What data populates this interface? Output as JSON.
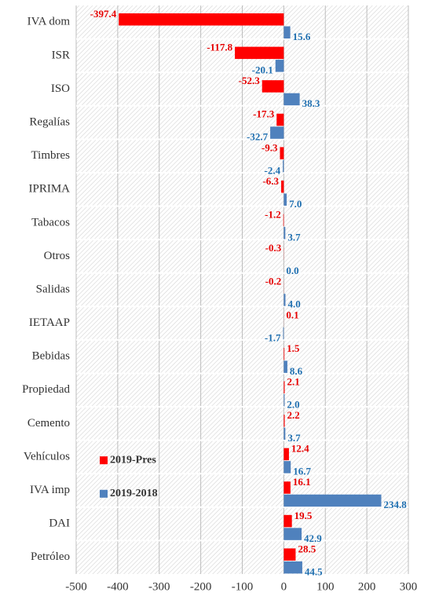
{
  "chart_data": {
    "type": "hbar",
    "categories": [
      "IVA dom",
      "ISR",
      "ISO",
      "Regalías",
      "Timbres",
      "IPRIMA",
      "Tabacos",
      "Otros",
      "Salidas",
      "IETAAP",
      "Bebidas",
      "Propiedad",
      "Cemento",
      "Vehículos",
      "IVA imp",
      "DAI",
      "Petróleo"
    ],
    "series": [
      {
        "name": "2019-Pres",
        "color": "#ff0000",
        "values": [
          -397.4,
          -117.8,
          -52.3,
          -17.3,
          -9.3,
          -6.3,
          -1.2,
          -0.3,
          -0.2,
          0.1,
          1.5,
          2.1,
          2.2,
          12.4,
          16.1,
          19.5,
          28.5
        ],
        "value_labels": [
          "-397.4",
          "-117.8",
          "-52.3",
          "-17.3",
          "-9.3",
          "-6.3",
          "-1.2",
          "-0.3",
          "-0.2",
          "0.1",
          "1.5",
          "2.1",
          "2.2",
          "12.4",
          "16.1",
          "19.5",
          "28.5"
        ]
      },
      {
        "name": "2019-2018",
        "color": "#4f81bd",
        "values": [
          15.6,
          -20.1,
          38.3,
          -32.7,
          -2.4,
          7.0,
          3.7,
          0.0,
          4.0,
          -1.7,
          8.6,
          2.0,
          3.7,
          16.7,
          234.8,
          42.9,
          44.5
        ],
        "value_labels": [
          "15.6",
          "-20.1",
          "38.3",
          "-32.7",
          "-2.4",
          "7.0",
          "3.7",
          "0.0",
          "4.0",
          "-1.7",
          "8.6",
          "2.0",
          "3.7",
          "16.7",
          "234.8",
          "42.9",
          "44.5"
        ]
      }
    ],
    "xlim": [
      -500,
      300
    ],
    "xticks": [
      -500,
      -400,
      -300,
      -200,
      -100,
      0,
      100,
      200,
      300
    ],
    "grid": true,
    "legend": "lower left"
  }
}
